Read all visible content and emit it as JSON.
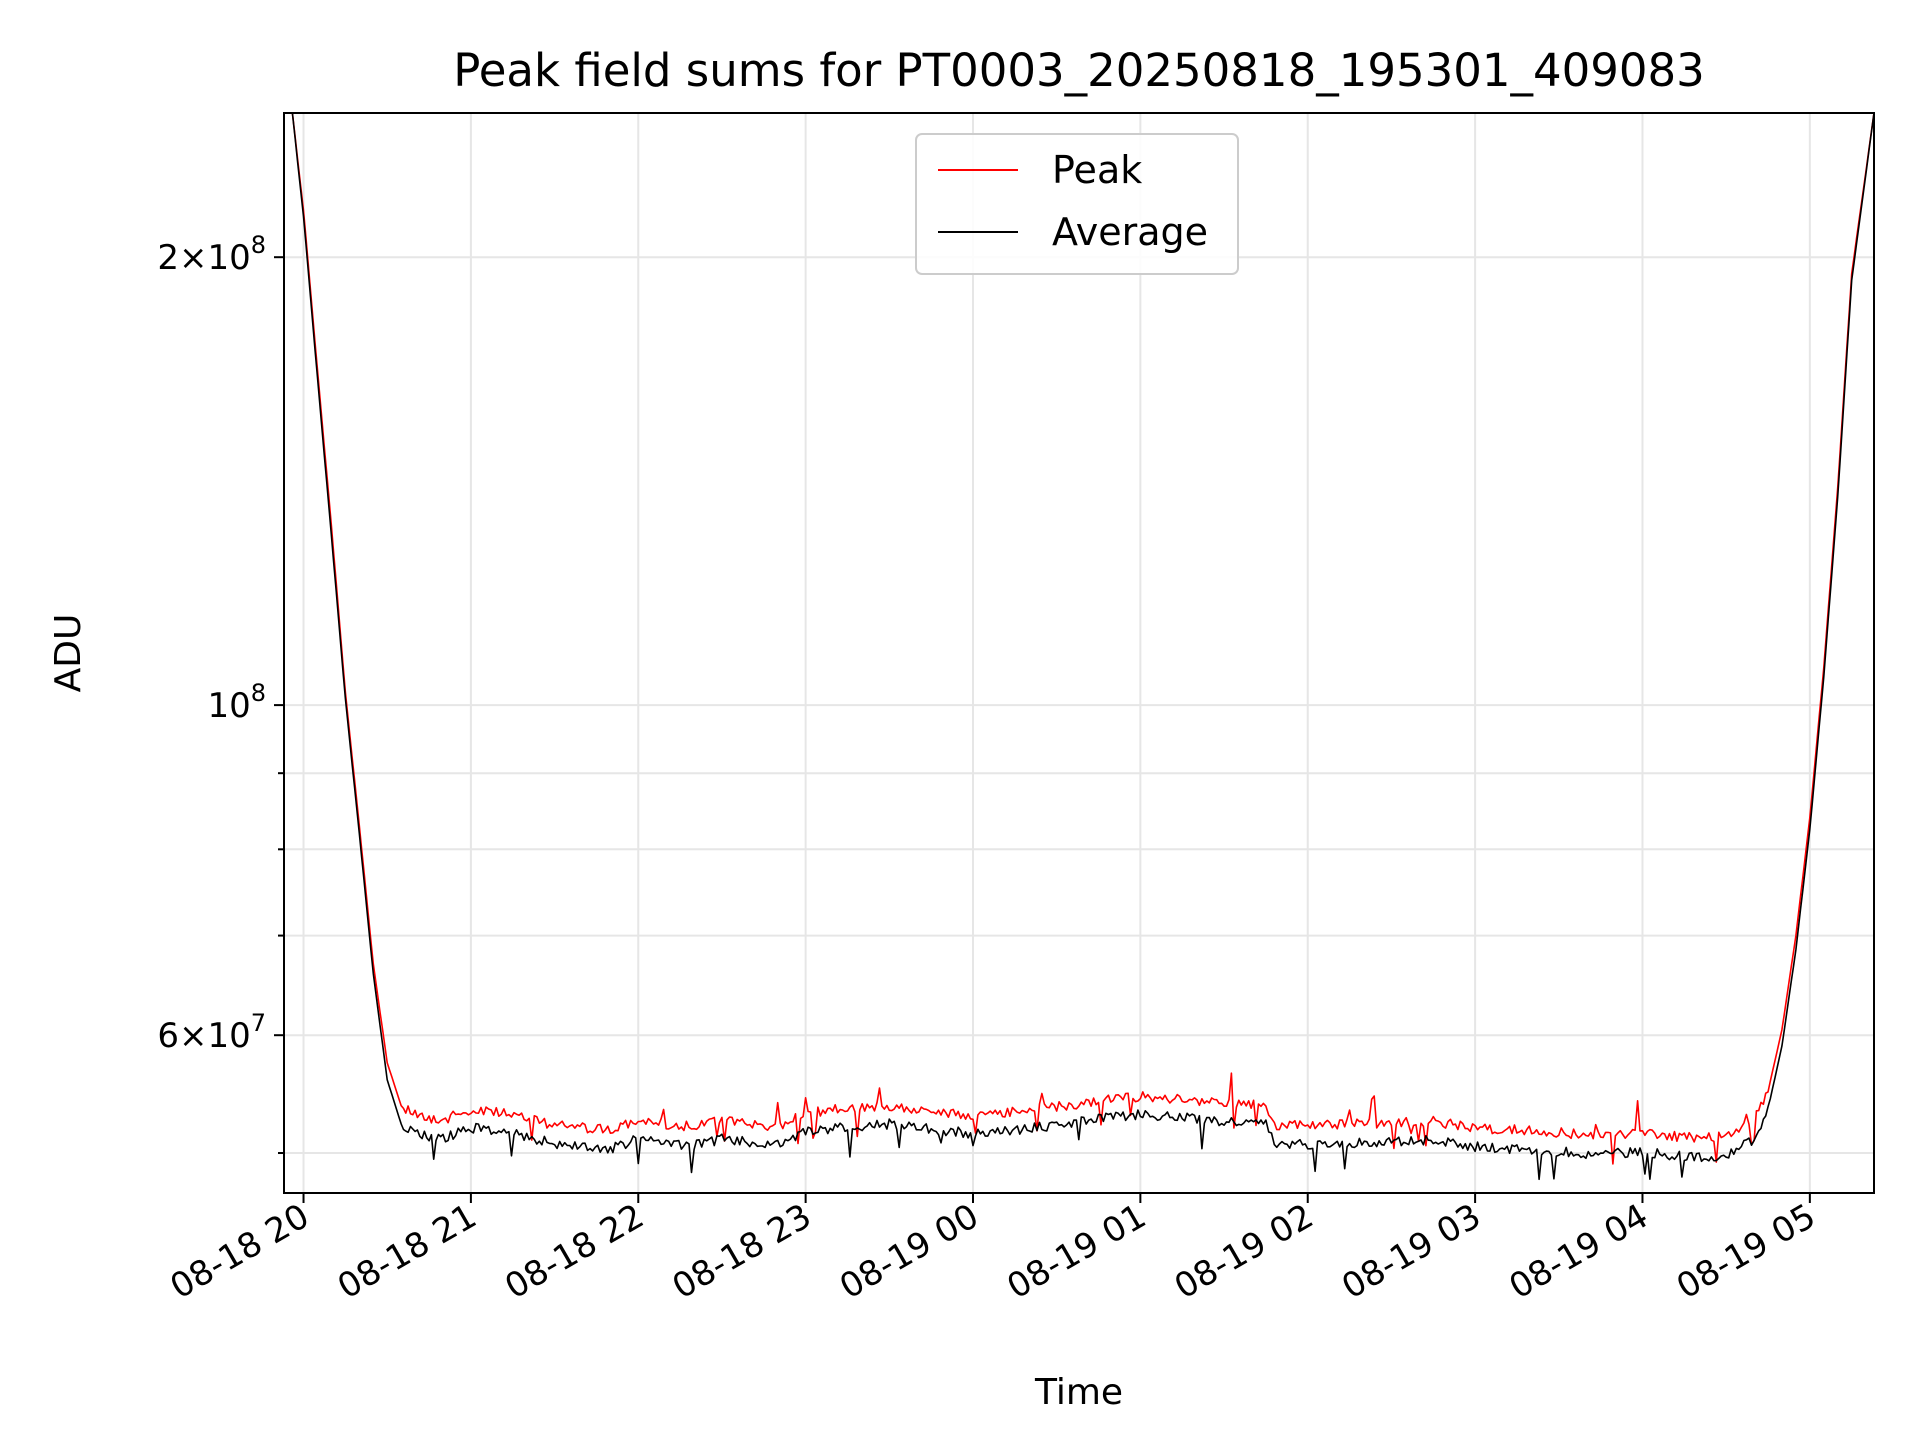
{
  "chart_data": {
    "type": "line",
    "title": "Peak field sums for PT0003_20250818_195301_409083",
    "xlabel": "Time",
    "ylabel": "ADU",
    "yscale": "log",
    "xlim": [
      "2025-08-18 19:53",
      "2025-08-19 05:23"
    ],
    "ylim": [
      47000000,
      250000000
    ],
    "grid": true,
    "legend": {
      "placement": "top-center"
    },
    "x_ticks": [
      {
        "at": "2025-08-18 20:00",
        "label": "08-18 20"
      },
      {
        "at": "2025-08-18 21:00",
        "label": "08-18 21"
      },
      {
        "at": "2025-08-18 22:00",
        "label": "08-18 22"
      },
      {
        "at": "2025-08-18 23:00",
        "label": "08-18 23"
      },
      {
        "at": "2025-08-19 00:00",
        "label": "08-19 00"
      },
      {
        "at": "2025-08-19 01:00",
        "label": "08-19 01"
      },
      {
        "at": "2025-08-19 02:00",
        "label": "08-19 02"
      },
      {
        "at": "2025-08-19 03:00",
        "label": "08-19 03"
      },
      {
        "at": "2025-08-19 04:00",
        "label": "08-19 04"
      },
      {
        "at": "2025-08-19 05:00",
        "label": "08-19 05"
      }
    ],
    "y_ticks": [
      {
        "value": 200000000,
        "base": "2×10",
        "exp": "8"
      },
      {
        "value": 100000000,
        "base": "10",
        "exp": "8"
      },
      {
        "value": 60000000,
        "base": "6×10",
        "exp": "7"
      }
    ],
    "y_minor_ticks": [
      50000000,
      70000000,
      80000000,
      90000000
    ],
    "series": [
      {
        "name": "Peak",
        "color": "#ff0000",
        "x": [
          "2025-08-18 19:53",
          "2025-08-18 19:56",
          "2025-08-18 20:00",
          "2025-08-18 20:05",
          "2025-08-18 20:10",
          "2025-08-18 20:15",
          "2025-08-18 20:20",
          "2025-08-18 20:25",
          "2025-08-18 20:30",
          "2025-08-18 20:35",
          "2025-08-18 20:40",
          "2025-08-18 20:45",
          "2025-08-18 20:50",
          "2025-08-18 21:00",
          "2025-08-18 21:10",
          "2025-08-18 21:20",
          "2025-08-18 21:30",
          "2025-08-18 21:40",
          "2025-08-18 21:50",
          "2025-08-18 22:00",
          "2025-08-18 22:10",
          "2025-08-18 22:20",
          "2025-08-18 22:30",
          "2025-08-18 22:40",
          "2025-08-18 22:50",
          "2025-08-18 23:00",
          "2025-08-18 23:15",
          "2025-08-18 23:30",
          "2025-08-18 23:45",
          "2025-08-19 00:00",
          "2025-08-19 00:15",
          "2025-08-19 00:30",
          "2025-08-19 00:45",
          "2025-08-19 01:00",
          "2025-08-19 01:15",
          "2025-08-19 01:30",
          "2025-08-19 01:45",
          "2025-08-19 01:48",
          "2025-08-19 02:00",
          "2025-08-19 02:15",
          "2025-08-19 02:30",
          "2025-08-19 02:45",
          "2025-08-19 03:00",
          "2025-08-19 03:15",
          "2025-08-19 03:30",
          "2025-08-19 03:45",
          "2025-08-19 04:00",
          "2025-08-19 04:15",
          "2025-08-19 04:30",
          "2025-08-19 04:40",
          "2025-08-19 04:45",
          "2025-08-19 04:50",
          "2025-08-19 04:55",
          "2025-08-19 05:00",
          "2025-08-19 05:05",
          "2025-08-19 05:10",
          "2025-08-19 05:15",
          "2025-08-19 05:23"
        ],
        "y": [
          250000000,
          250000000,
          215000000,
          168000000,
          132000000,
          102000000,
          83000000,
          67000000,
          57500000,
          53800000,
          53200000,
          52800000,
          52600000,
          53500000,
          53200000,
          52800000,
          52200000,
          52000000,
          51800000,
          52600000,
          52300000,
          52100000,
          52600000,
          52300000,
          52100000,
          53200000,
          53600000,
          53800000,
          53400000,
          53000000,
          53300000,
          53700000,
          54200000,
          54600000,
          54300000,
          54000000,
          53800000,
          52200000,
          52200000,
          52300000,
          52400000,
          52500000,
          52000000,
          51800000,
          51600000,
          51400000,
          51600000,
          51200000,
          51300000,
          52600000,
          55000000,
          60500000,
          70000000,
          84000000,
          106000000,
          140000000,
          195000000,
          250000000
        ]
      },
      {
        "name": "Average",
        "color": "#000000",
        "x": [
          "2025-08-18 19:53",
          "2025-08-18 19:56",
          "2025-08-18 20:00",
          "2025-08-18 20:05",
          "2025-08-18 20:10",
          "2025-08-18 20:15",
          "2025-08-18 20:20",
          "2025-08-18 20:25",
          "2025-08-18 20:30",
          "2025-08-18 20:35",
          "2025-08-18 20:40",
          "2025-08-18 20:45",
          "2025-08-18 20:50",
          "2025-08-18 21:00",
          "2025-08-18 21:10",
          "2025-08-18 21:20",
          "2025-08-18 21:30",
          "2025-08-18 21:40",
          "2025-08-18 21:50",
          "2025-08-18 22:00",
          "2025-08-18 22:10",
          "2025-08-18 22:20",
          "2025-08-18 22:30",
          "2025-08-18 22:40",
          "2025-08-18 22:50",
          "2025-08-18 23:00",
          "2025-08-18 23:15",
          "2025-08-18 23:30",
          "2025-08-18 23:45",
          "2025-08-19 00:00",
          "2025-08-19 00:15",
          "2025-08-19 00:30",
          "2025-08-19 00:45",
          "2025-08-19 01:00",
          "2025-08-19 01:15",
          "2025-08-19 01:30",
          "2025-08-19 01:45",
          "2025-08-19 01:48",
          "2025-08-19 02:00",
          "2025-08-19 02:15",
          "2025-08-19 02:30",
          "2025-08-19 02:45",
          "2025-08-19 03:00",
          "2025-08-19 03:15",
          "2025-08-19 03:30",
          "2025-08-19 03:45",
          "2025-08-19 04:00",
          "2025-08-19 04:15",
          "2025-08-19 04:30",
          "2025-08-19 04:40",
          "2025-08-19 04:45",
          "2025-08-19 04:50",
          "2025-08-19 04:55",
          "2025-08-19 05:00",
          "2025-08-19 05:05",
          "2025-08-19 05:10",
          "2025-08-19 05:15",
          "2025-08-19 05:23"
        ],
        "y": [
          250000000,
          250000000,
          213000000,
          166000000,
          130000000,
          101000000,
          82000000,
          66000000,
          56000000,
          52300000,
          51700000,
          51300000,
          51100000,
          52000000,
          51700000,
          51300000,
          50700000,
          50500000,
          50300000,
          51100000,
          50800000,
          50600000,
          51100000,
          50800000,
          50600000,
          51700000,
          52100000,
          52300000,
          51900000,
          51500000,
          51800000,
          52200000,
          52700000,
          53100000,
          52800000,
          52500000,
          52300000,
          50700000,
          50700000,
          50800000,
          50900000,
          51000000,
          50500000,
          50300000,
          50100000,
          49900000,
          50100000,
          49700000,
          49800000,
          51100000,
          53500000,
          59000000,
          68500000,
          82500000,
          104500000,
          138000000,
          193000000,
          250000000
        ]
      }
    ]
  }
}
